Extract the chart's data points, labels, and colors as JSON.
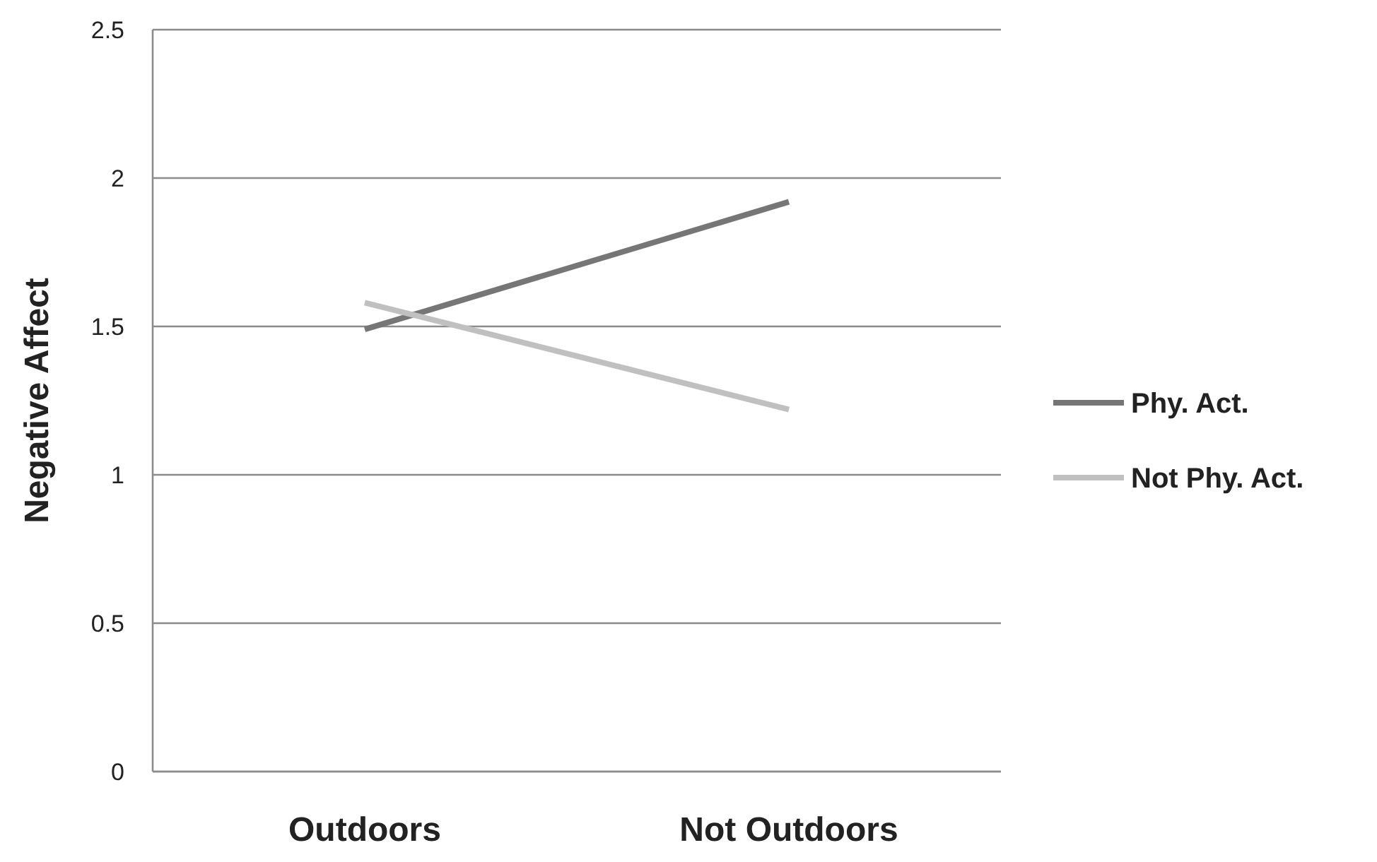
{
  "chart_data": {
    "type": "line",
    "ylabel": "Negative Affect",
    "categories": [
      "Outdoors",
      "Not Outdoors"
    ],
    "series": [
      {
        "name": "Phy. Act.",
        "color": "#767676",
        "values": [
          1.49,
          1.92
        ]
      },
      {
        "name": "Not Phy. Act.",
        "color": "#c0c0c0",
        "values": [
          1.58,
          1.22
        ]
      }
    ],
    "ylim": [
      0,
      2.5
    ],
    "yticks": [
      0,
      0.5,
      1,
      1.5,
      2,
      2.5
    ],
    "grid": "y",
    "legend": "right",
    "marker": "none",
    "line_style": "solid"
  }
}
